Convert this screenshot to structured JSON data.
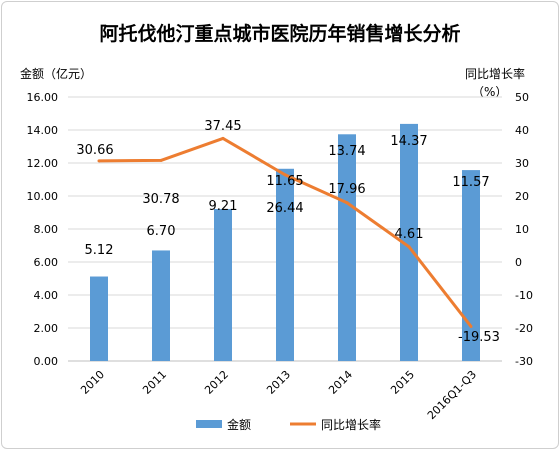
{
  "chart_data": {
    "type": "bar",
    "title": "阿托伐他汀重点城市医院历年销售增长分析",
    "categories": [
      "2010",
      "2011",
      "2012",
      "2013",
      "2014",
      "2015",
      "2016Q1-Q3"
    ],
    "left_axis_label": "金额（亿元）",
    "right_axis_label_line1": "同比增长率",
    "right_axis_label_line2": "（%）",
    "left_ylim": [
      0,
      16
    ],
    "left_ticks": [
      "0.00",
      "2.00",
      "4.00",
      "6.00",
      "8.00",
      "10.00",
      "12.00",
      "14.00",
      "16.00"
    ],
    "right_ylim": [
      -30,
      50
    ],
    "right_ticks": [
      "-30",
      "-20",
      "-10",
      "0",
      "10",
      "20",
      "30",
      "40",
      "50"
    ],
    "grid": true,
    "legend_position": "bottom",
    "series": [
      {
        "name": "金额",
        "type": "bar",
        "axis": "left",
        "color": "#5b9bd5",
        "values": [
          5.12,
          6.7,
          9.21,
          11.65,
          13.74,
          14.37,
          11.57
        ],
        "labels": [
          "5.12",
          "6.70",
          "9.21",
          "11.65",
          "13.74",
          "14.37",
          "11.57"
        ]
      },
      {
        "name": "同比增长率",
        "type": "line",
        "axis": "right",
        "color": "#ed7d31",
        "values": [
          30.66,
          30.78,
          37.45,
          26.44,
          17.96,
          4.61,
          -19.53
        ],
        "labels": [
          "30.66",
          "30.78",
          "37.45",
          "26.44",
          "17.96",
          "4.61",
          "-19.53"
        ]
      }
    ]
  }
}
